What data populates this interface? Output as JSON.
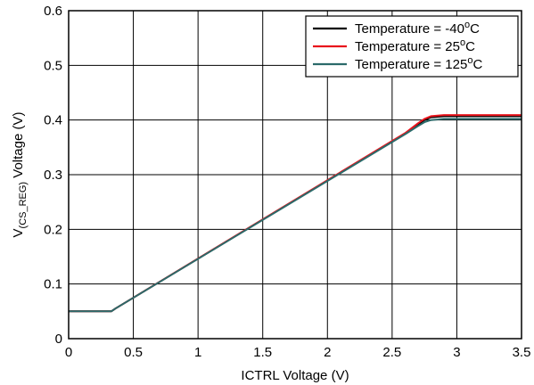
{
  "chart_data": {
    "type": "line",
    "xlabel": "ICTRL Voltage (V)",
    "ylabel_main": "V",
    "ylabel_sub": "(CS_REG)",
    "ylabel_rest": " Voltage (V)",
    "xlim": [
      0,
      3.5
    ],
    "ylim": [
      0,
      0.6
    ],
    "xticks": [
      "0",
      "0.5",
      "1",
      "1.5",
      "2",
      "2.5",
      "3",
      "3.5"
    ],
    "yticks": [
      "0",
      "0.1",
      "0.2",
      "0.3",
      "0.4",
      "0.5",
      "0.6"
    ],
    "grid": true,
    "legend_position": "top-right",
    "series": [
      {
        "name_prefix": "Temperature = -40",
        "name_sup": "o",
        "name_suffix": "C",
        "color": "#000000",
        "x": [
          0,
          0.33,
          0.36,
          2.6,
          2.7,
          2.75,
          2.8,
          2.9,
          3.5
        ],
        "y": [
          0.05,
          0.05,
          0.055,
          0.375,
          0.392,
          0.4,
          0.405,
          0.407,
          0.407
        ]
      },
      {
        "name_prefix": "Temperature = 25",
        "name_sup": "o",
        "name_suffix": "C",
        "color": "#e8141c",
        "x": [
          0,
          0.33,
          0.36,
          2.6,
          2.7,
          2.75,
          2.8,
          2.9,
          3.5
        ],
        "y": [
          0.05,
          0.05,
          0.055,
          0.376,
          0.394,
          0.402,
          0.407,
          0.409,
          0.409
        ]
      },
      {
        "name_prefix": "Temperature = 125",
        "name_sup": "o",
        "name_suffix": "C",
        "color": "#2b6a6a",
        "x": [
          0,
          0.33,
          0.36,
          2.6,
          2.7,
          2.75,
          2.8,
          2.9,
          3.5
        ],
        "y": [
          0.05,
          0.05,
          0.055,
          0.374,
          0.389,
          0.396,
          0.4,
          0.402,
          0.402
        ]
      }
    ]
  }
}
